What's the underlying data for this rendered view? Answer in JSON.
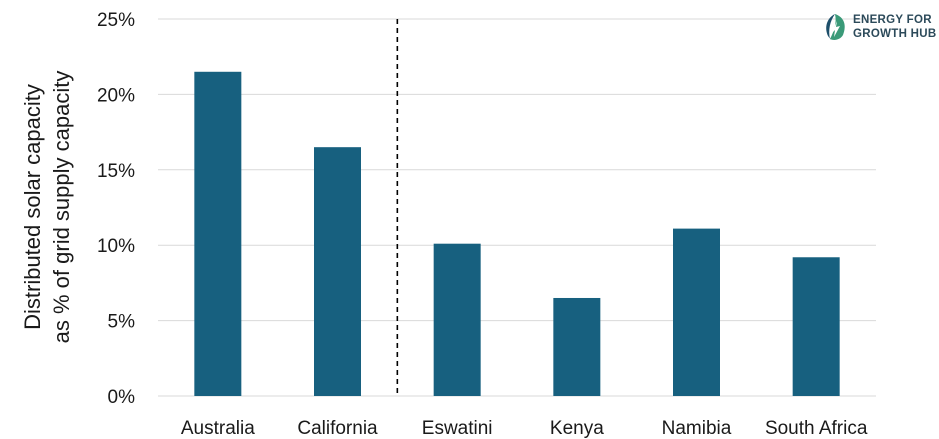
{
  "logo": {
    "line1": "ENERGY FOR",
    "line2": "GROWTH HUB"
  },
  "chart_data": {
    "type": "bar",
    "title": "",
    "ylabel_line1": "Distributed solar capacity",
    "ylabel_line2": "as % of grid supply capacity",
    "xlabel": "",
    "categories": [
      "Australia",
      "California",
      "Eswatini",
      "Kenya",
      "Namibia",
      "South Africa"
    ],
    "values": [
      21.5,
      16.5,
      10.1,
      6.5,
      11.1,
      9.2
    ],
    "ylim": [
      0,
      25
    ],
    "yticks": [
      0,
      5,
      10,
      15,
      20,
      25
    ],
    "ytick_labels": [
      "0%",
      "5%",
      "10%",
      "15%",
      "20%",
      "25%"
    ],
    "grid": true,
    "separator_after_index": 1,
    "bar_color": "#17607f",
    "grid_color": "#d9d9d9"
  }
}
